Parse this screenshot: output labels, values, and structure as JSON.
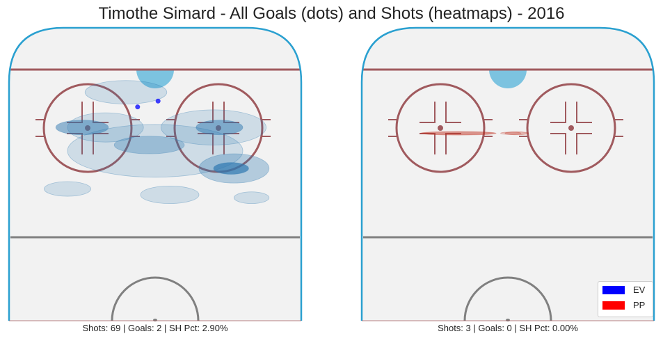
{
  "title": "Timothe Simard - All Goals (dots) and Shots (heatmaps) - 2016",
  "colors": {
    "ice": "#f2f2f2",
    "boards": "#2aa0d0",
    "red_line": "#a05a5e",
    "center_line": "#808080",
    "crease": "#7cc3e0",
    "ev": "#0000ff",
    "pp": "#ff0000",
    "ev_heat": "#2f78b0",
    "pp_heat": "#c03020"
  },
  "chart_data": [
    {
      "type": "heatmap",
      "panel": "even-strength",
      "caption": "Shots: 69 | Goals: 2 | SH Pct: 2.90%",
      "shots": 69,
      "goals": 2,
      "sh_pct": 2.9,
      "goal_dots": [
        {
          "x": 0.44,
          "y": 0.27
        },
        {
          "x": 0.51,
          "y": 0.25
        }
      ],
      "density": [
        {
          "x": 0.25,
          "y": 0.34,
          "rx": 0.09,
          "ry": 0.025,
          "level": 3
        },
        {
          "x": 0.33,
          "y": 0.34,
          "rx": 0.13,
          "ry": 0.05,
          "level": 1
        },
        {
          "x": 0.72,
          "y": 0.34,
          "rx": 0.08,
          "ry": 0.025,
          "level": 3
        },
        {
          "x": 0.7,
          "y": 0.34,
          "rx": 0.18,
          "ry": 0.06,
          "level": 1
        },
        {
          "x": 0.48,
          "y": 0.4,
          "rx": 0.12,
          "ry": 0.03,
          "level": 2
        },
        {
          "x": 0.5,
          "y": 0.42,
          "rx": 0.3,
          "ry": 0.09,
          "level": 1
        },
        {
          "x": 0.76,
          "y": 0.48,
          "rx": 0.06,
          "ry": 0.02,
          "level": 4
        },
        {
          "x": 0.77,
          "y": 0.48,
          "rx": 0.12,
          "ry": 0.05,
          "level": 2
        },
        {
          "x": 0.4,
          "y": 0.22,
          "rx": 0.14,
          "ry": 0.04,
          "level": 1
        },
        {
          "x": 0.55,
          "y": 0.57,
          "rx": 0.1,
          "ry": 0.03,
          "level": 1
        },
        {
          "x": 0.2,
          "y": 0.55,
          "rx": 0.08,
          "ry": 0.025,
          "level": 1
        },
        {
          "x": 0.83,
          "y": 0.58,
          "rx": 0.06,
          "ry": 0.02,
          "level": 1
        }
      ]
    },
    {
      "type": "heatmap",
      "panel": "power-play",
      "caption": "Shots: 3 | Goals: 0 | SH Pct: 0.00%",
      "shots": 3,
      "goals": 0,
      "sh_pct": 0.0,
      "goal_dots": [],
      "density": [
        {
          "x": 0.33,
          "y": 0.36,
          "rx": 0.13,
          "ry": 0.006,
          "level": 3
        },
        {
          "x": 0.53,
          "y": 0.36,
          "rx": 0.04,
          "ry": 0.005,
          "level": 2
        },
        {
          "x": 0.51,
          "y": 0.36,
          "rx": 0.035,
          "ry": 0.004,
          "level": 1
        }
      ],
      "legend": {
        "placement": "bottom-right",
        "entries": [
          {
            "label": "EV",
            "color": "#0000ff"
          },
          {
            "label": "PP",
            "color": "#ff0000"
          }
        ]
      }
    }
  ]
}
